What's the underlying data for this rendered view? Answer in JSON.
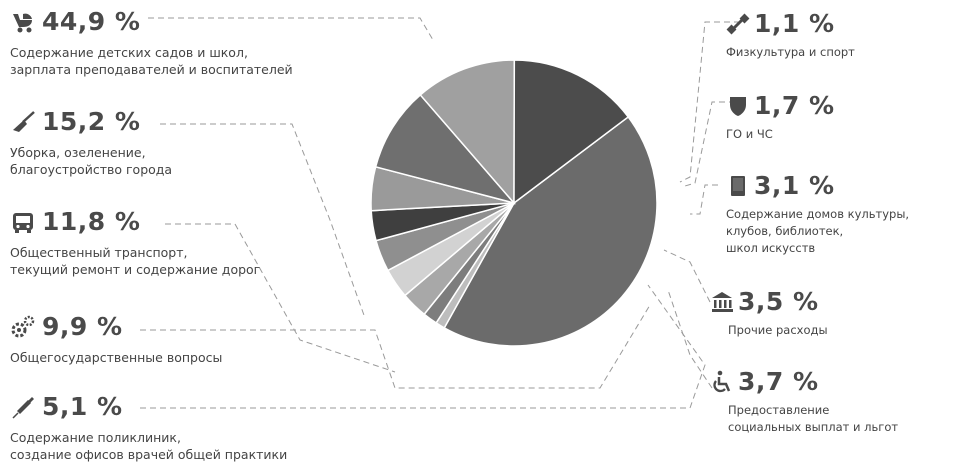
{
  "chart_data": {
    "type": "pie",
    "title": "",
    "slices": [
      {
        "value": 44.9,
        "value_label": "44,9 %",
        "label_lines": [
          "Содержание детских садов и школ,",
          "зарплата преподавателей и воспитателей"
        ],
        "icon": "stroller-icon",
        "color": "#6b6b6b"
      },
      {
        "value": 1.1,
        "value_label": "1,1 %",
        "label_lines": [
          "Физкультура и спорт"
        ],
        "icon": "dumbbell-icon",
        "color": "#bdbdbd"
      },
      {
        "value": 1.7,
        "value_label": "1,7 %",
        "label_lines": [
          "ГО и ЧС"
        ],
        "icon": "shield-icon",
        "color": "#7d7d7d"
      },
      {
        "value": 3.1,
        "value_label": "3,1 %",
        "label_lines": [
          "Содержание домов культуры,",
          "клубов, библиотек,",
          "школ искусств"
        ],
        "icon": "book-icon",
        "color": "#a8a8a8"
      },
      {
        "value": 3.5,
        "value_label": "3,5 %",
        "label_lines": [
          "Прочие расходы"
        ],
        "icon": "bank-icon",
        "color": "#d2d2d2"
      },
      {
        "value": 3.7,
        "value_label": "3,7 %",
        "label_lines": [
          "Предоставление",
          "социальных выплат и льгот"
        ],
        "icon": "wheelchair-icon",
        "color": "#8f8f8f"
      },
      {
        "value": 3.5,
        "value_label": "",
        "label_lines": [],
        "icon": "",
        "color": "#3f3f3f"
      },
      {
        "value": 5.1,
        "value_label": "5,1 %",
        "label_lines": [
          "Содержание поликлиник,",
          "создание офисов врачей общей практики"
        ],
        "icon": "syringe-icon",
        "color": "#9a9a9a"
      },
      {
        "value": 9.9,
        "value_label": "9,9 %",
        "label_lines": [
          "Общегосударственные вопросы"
        ],
        "icon": "gears-icon",
        "color": "#6f6f6f"
      },
      {
        "value": 11.8,
        "value_label": "11,8 %",
        "label_lines": [
          "Общественный транспорт,",
          "текущий ремонт и содержание дорог"
        ],
        "icon": "bus-icon",
        "color": "#a0a0a0"
      },
      {
        "value": 15.2,
        "value_label": "15,2 %",
        "label_lines": [
          "Уборка, озеленение,",
          "благоустройство города"
        ],
        "icon": "broom-icon",
        "color": "#4c4c4c"
      }
    ]
  }
}
